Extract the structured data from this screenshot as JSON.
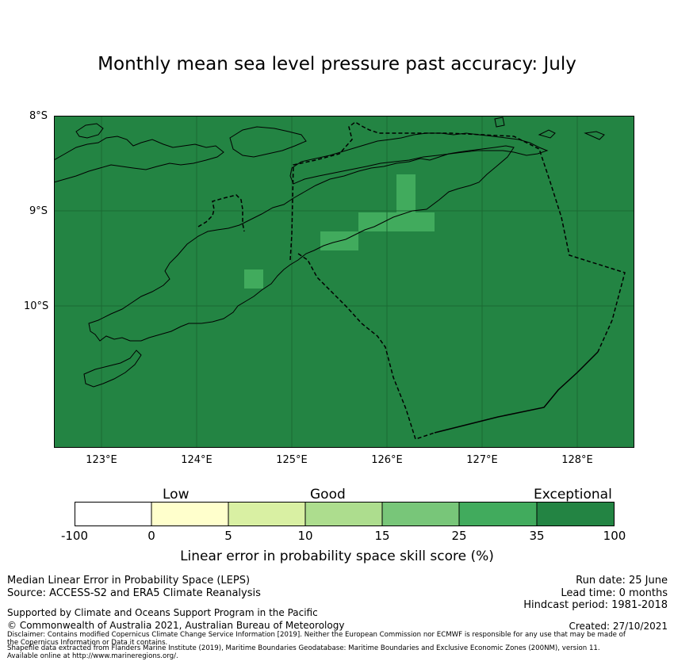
{
  "title": "Monthly mean sea level pressure past accuracy: July",
  "latitude_labels": [
    "8°S",
    "9°S",
    "10°S"
  ],
  "longitude_labels": [
    "123°E",
    "124°E",
    "125°E",
    "126°E",
    "127°E",
    "128°E"
  ],
  "colorbar": {
    "categories": [
      "Low",
      "Good",
      "Exceptional"
    ],
    "ticks": [
      "-100",
      "0",
      "5",
      "10",
      "15",
      "25",
      "35",
      "100"
    ],
    "colors": [
      "#ffffff",
      "#ffffcc",
      "#d9f0a3",
      "#addd8e",
      "#78c679",
      "#41ab5d",
      "#238443"
    ],
    "label": "Linear error in probability space skill score (%)"
  },
  "map": {
    "background_color": "#238443",
    "highlight_color": "#41ab5d",
    "extent": {
      "lon": [
        122.5,
        128.6
      ],
      "lat": [
        -11.5,
        -8.0
      ]
    },
    "higher_skill_cells": [
      {
        "lon": [
          124.5,
          124.7
        ],
        "lat": [
          -9.8,
          -9.6
        ]
      },
      {
        "lon": [
          125.3,
          125.7
        ],
        "lat": [
          -9.4,
          -9.2
        ]
      },
      {
        "lon": [
          125.7,
          126.5
        ],
        "lat": [
          -9.2,
          -9.0
        ]
      },
      {
        "lon": [
          126.1,
          126.3
        ],
        "lat": [
          -9.0,
          -8.6
        ]
      }
    ]
  },
  "footer": {
    "line1": "Median Linear Error in Probability Space (LEPS)",
    "line2": "Source: ACCESS-S2 and ERA5 Climate Reanalysis",
    "line3": "Supported by Climate and Oceans Support Program in the Pacific",
    "line4": "© Commonwealth of Australia 2021, Australian Bureau of Meteorology",
    "run_date": "Run date: 25 June",
    "lead_time": "Lead time: 0 months",
    "hindcast": "Hindcast period: 1981-2018",
    "created": "Created: 27/10/2021",
    "disclaimer1": "Disclaimer: Contains modified Copernicus Climate Change Service Information [2019]. Neither the European Commission nor ECMWF is responsible for any use that may be made of",
    "disclaimer2": "the Copernicus Information or Data it contains.",
    "shapefile1": "Shapefile data extracted from Flanders Marine Institute (2019), Maritime Boundaries Geodatabase: Maritime Boundaries and Exclusive Economic Zones (200NM), version 11.",
    "shapefile2": "Available online at http://www.marineregions.org/."
  }
}
